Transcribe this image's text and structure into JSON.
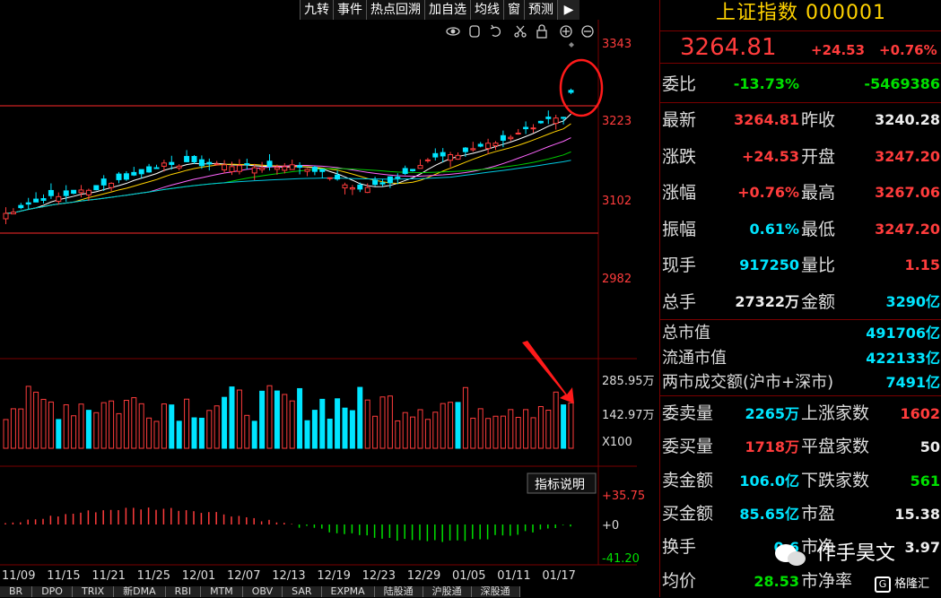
{
  "toolbar": [
    "九转",
    "事件",
    "热点回溯",
    "加自选",
    "均线",
    "窗",
    "预测"
  ],
  "price_axis": {
    "labels": [
      "3343",
      "3223",
      "3102",
      "2982"
    ]
  },
  "date_axis": [
    "11/09",
    "11/15",
    "11/21",
    "11/25",
    "12/01",
    "12/07",
    "12/13",
    "12/19",
    "12/23",
    "12/29",
    "01/05",
    "01/11",
    "01/17"
  ],
  "volume_axis": {
    "top": "285.95万",
    "mid": "142.97万",
    "unit": "X100"
  },
  "macd_axis": {
    "top": "+35.75",
    "zero": "+0",
    "bottom": "-41.20"
  },
  "macd_button": "指标说明",
  "bottom_tabs": [
    "BR",
    "DPO",
    "TRIX",
    "新DMA",
    "RBI",
    "MTM",
    "OBV",
    "SAR",
    "EXPMA",
    "陆股通",
    "沪股通",
    "深股通"
  ],
  "panel": {
    "title": "上证指数 000001",
    "price": "3264.81",
    "change": "+24.53",
    "change_pct": "+0.76%",
    "weibi_label": "委比",
    "weibi_pct": "-13.73%",
    "weibi_val": "-5469386",
    "quote_rows": [
      {
        "l1": "最新",
        "v1": "3264.81",
        "c1": "red",
        "l2": "昨收",
        "v2": "3240.28",
        "c2": "white"
      },
      {
        "l1": "涨跌",
        "v1": "+24.53",
        "c1": "red",
        "l2": "开盘",
        "v2": "3247.20",
        "c2": "red"
      },
      {
        "l1": "涨幅",
        "v1": "+0.76%",
        "c1": "red",
        "l2": "最高",
        "v2": "3267.06",
        "c2": "red"
      },
      {
        "l1": "振幅",
        "v1": "0.61%",
        "c1": "cyan",
        "l2": "最低",
        "v2": "3247.20",
        "c2": "red"
      },
      {
        "l1": "现手",
        "v1": "917250",
        "c1": "cyan",
        "l2": "量比",
        "v2": "1.15",
        "c2": "red"
      },
      {
        "l1": "总手",
        "v1": "27322万",
        "c1": "white",
        "l2": "金额",
        "v2": "3290亿",
        "c2": "cyan"
      }
    ],
    "cap_rows": [
      {
        "label": "总市值",
        "value": "491706亿"
      },
      {
        "label": "流通市值",
        "value": "422133亿"
      },
      {
        "label": "两市成交额(沪市+深市)",
        "value": "7491亿"
      }
    ],
    "order_rows": [
      {
        "l1": "委卖量",
        "v1": "2265万",
        "c1": "cyan",
        "l2": "上涨家数",
        "v2": "1602",
        "c2": "red"
      },
      {
        "l1": "委买量",
        "v1": "1718万",
        "c1": "red",
        "l2": "平盘家数",
        "v2": "50",
        "c2": "white"
      },
      {
        "l1": "卖金额",
        "v1": "106.0亿",
        "c1": "cyan",
        "l2": "下跌家数",
        "v2": "561",
        "c2": "green"
      },
      {
        "l1": "买金额",
        "v1": "85.65亿",
        "c1": "cyan",
        "l2": "市盈",
        "v2": "15.38",
        "c2": "white"
      },
      {
        "l1": "换手",
        "v1": "0.6",
        "c1": "cyan",
        "l2": "市净",
        "v2": "3.97",
        "c2": "white"
      },
      {
        "l1": "均价",
        "v1": "28.53",
        "c1": "green",
        "l2": "市净率",
        "v2": "",
        "c2": "white"
      }
    ]
  },
  "watermark": "作手昊文",
  "watermark_logo": "格隆汇",
  "colors": {
    "up": "#ff3c3c",
    "down": "#00e5ff",
    "ma5": "#ffffff",
    "ma10": "#ffd200",
    "ma20": "#ff66ff",
    "ma30": "#00cc00",
    "ma60": "#00c8e0",
    "annotation": "#ff1a1a"
  }
}
